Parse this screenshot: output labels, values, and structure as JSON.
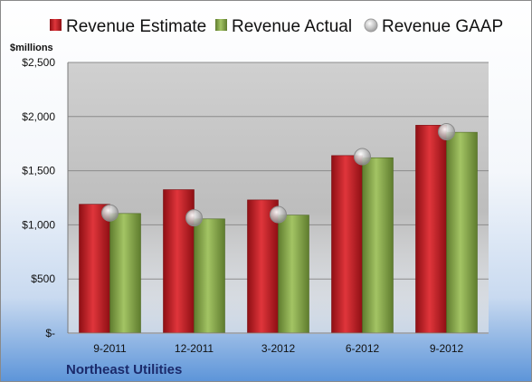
{
  "chart_data": {
    "type": "bar",
    "title": "",
    "unit_label": "$millions",
    "company": "Northeast Utilities",
    "categories": [
      "9-2011",
      "12-2011",
      "3-2012",
      "6-2012",
      "9-2012"
    ],
    "series": [
      {
        "name": "Revenue Estimate",
        "kind": "bar",
        "color": "#c8161e",
        "values": [
          1190,
          1325,
          1230,
          1640,
          1920
        ]
      },
      {
        "name": "Revenue Actual",
        "kind": "bar",
        "color": "#86a84a",
        "values": [
          1105,
          1055,
          1090,
          1620,
          1855
        ]
      },
      {
        "name": "Revenue GAAP",
        "kind": "marker",
        "color": "#b8b8b8",
        "values": [
          1110,
          1065,
          1095,
          1630,
          1860
        ]
      }
    ],
    "ylim": [
      0,
      2500
    ],
    "yticks": [
      0,
      500,
      1000,
      1500,
      2000,
      2500
    ],
    "ytick_labels": [
      "$-",
      "$500",
      "$1,000",
      "$1,500",
      "$2,000",
      "$2,500"
    ],
    "grid": true,
    "legend_position": "top"
  }
}
